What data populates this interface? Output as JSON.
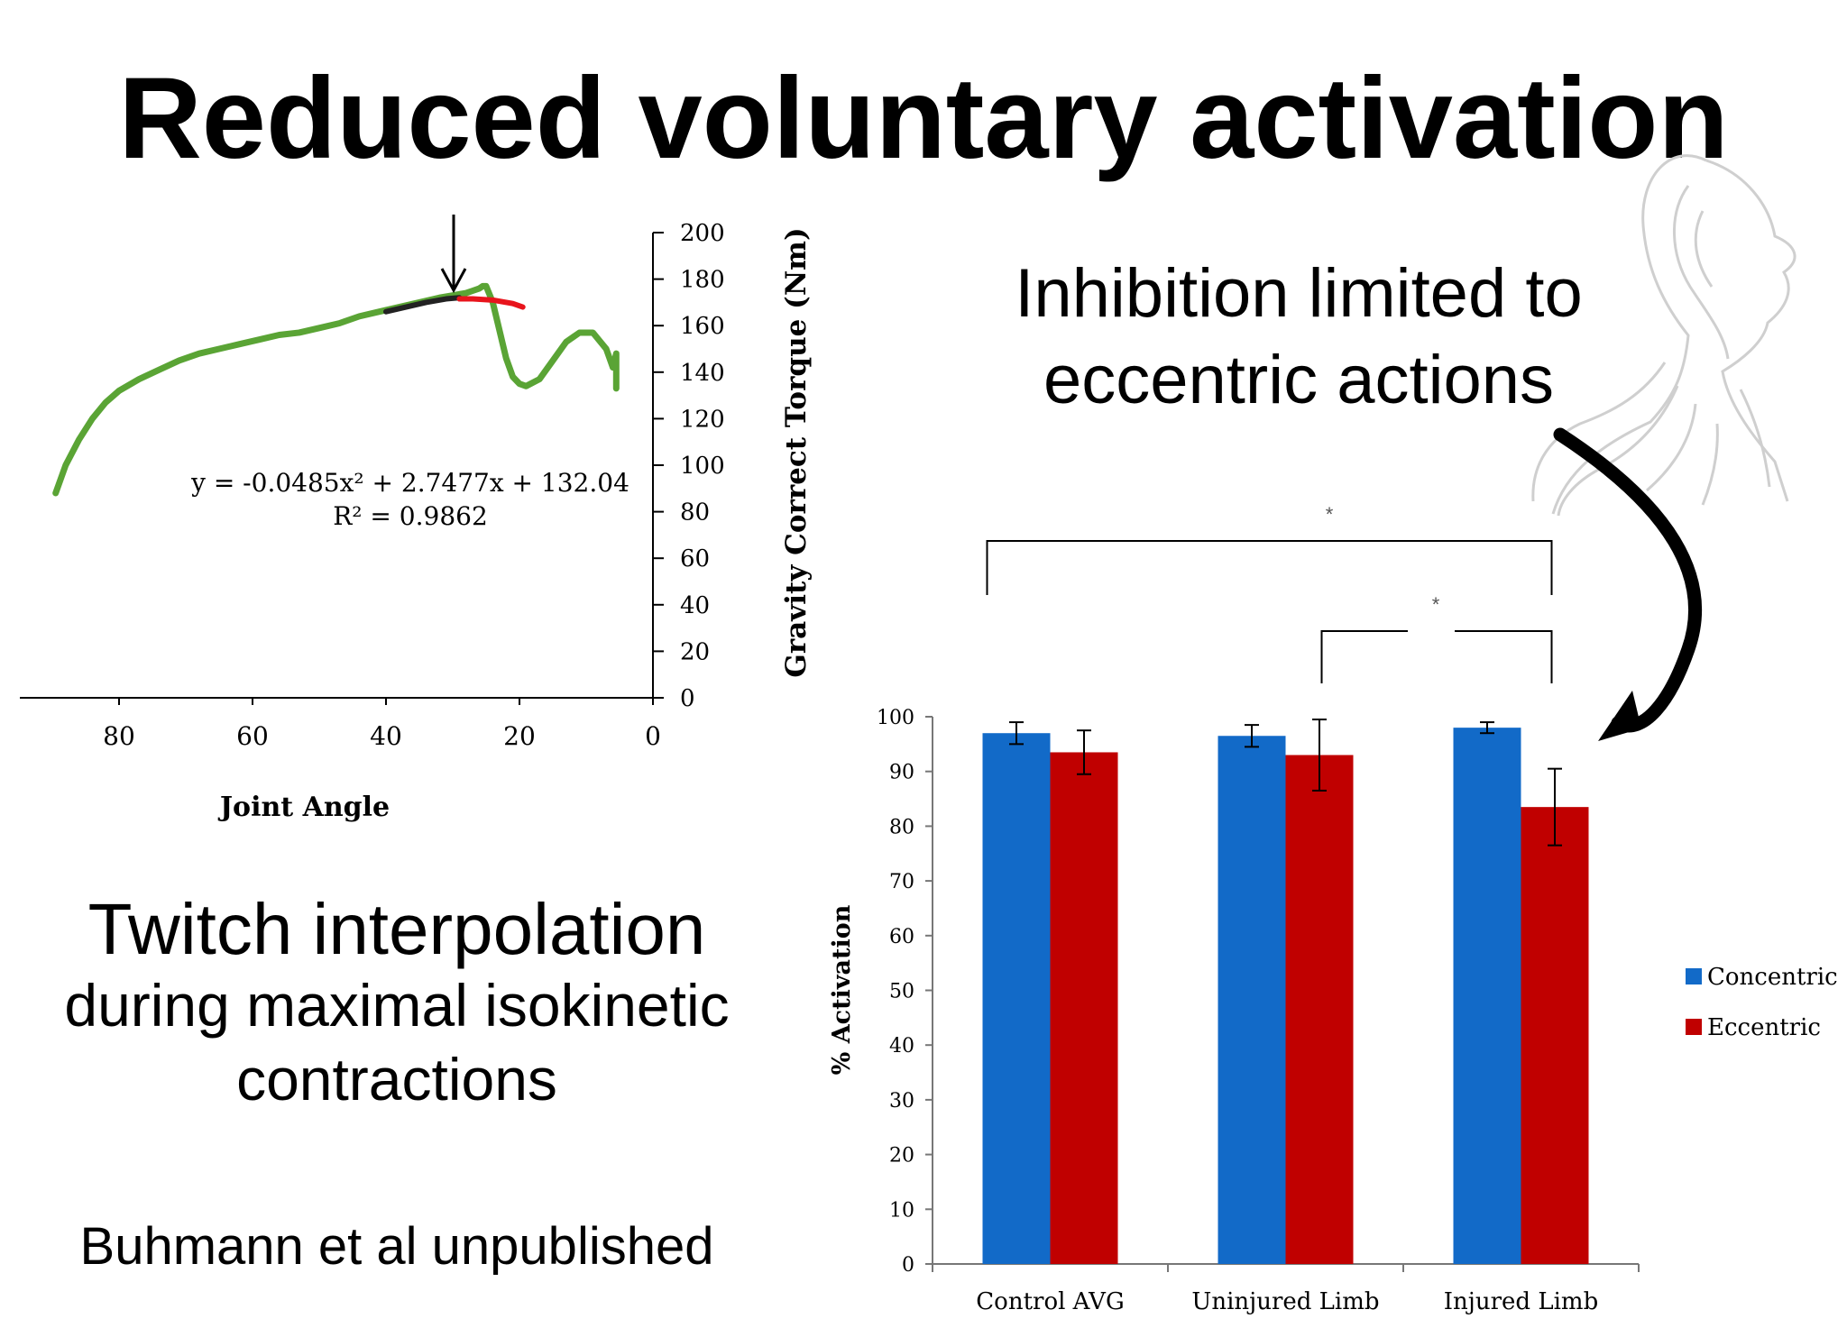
{
  "slide": {
    "title": "Reduced voluntary activation",
    "inhibition_text": [
      "Inhibition limited to",
      "eccentric actions"
    ],
    "twitch_text": [
      "Twitch interpolation",
      "during maximal isokinetic",
      "contractions"
    ],
    "credit": "Buhmann et al unpublished",
    "decorations": [
      "head-anatomy-sketch",
      "curved-arrow-icon",
      "down-arrow-icon"
    ]
  },
  "chart_data": [
    {
      "type": "line",
      "title": "",
      "xlabel": "Joint Angle",
      "ylabel": "Gravity Correct Torque (Nm)",
      "xlim": [
        95,
        0
      ],
      "ylim": [
        0,
        200
      ],
      "x_ticks": [
        "80",
        "60",
        "40",
        "20",
        "0"
      ],
      "y_ticks": [
        "200",
        "180",
        "160",
        "140",
        "120",
        "100",
        "80",
        "60",
        "40",
        "20",
        "0"
      ],
      "y_axis_side": "right",
      "annotation": [
        "y = -0.0485x² + 2.7477x + 132.04",
        "R² = 0.9862"
      ],
      "colors": {
        "torque": "#5aa435",
        "fit": "#222222",
        "extrapolation": "#e8141c"
      },
      "series": [
        {
          "color": "#5aa435",
          "x": [
            89.5,
            88,
            86,
            84,
            82,
            80,
            77,
            74,
            71,
            68,
            65,
            62,
            59,
            56,
            53,
            50,
            47,
            44,
            41,
            38,
            35,
            32,
            30,
            28,
            27,
            26,
            25.5,
            25,
            24,
            23,
            22,
            21,
            20,
            19,
            17,
            15,
            13,
            11,
            9,
            7,
            6,
            5.5,
            5.5
          ],
          "y": [
            88,
            100,
            111,
            120,
            127,
            132,
            137,
            141,
            145,
            148,
            150,
            152,
            154,
            156,
            157,
            159,
            161,
            164,
            166,
            168,
            170,
            172,
            173,
            174,
            175,
            176,
            177,
            177,
            170,
            158,
            146,
            138,
            135,
            134,
            137,
            145,
            153,
            157,
            157,
            150,
            142,
            148,
            133
          ]
        },
        {
          "color": "#222222",
          "x": [
            40,
            37,
            34,
            31,
            29
          ],
          "y": [
            166,
            168,
            170,
            171.5,
            172
          ]
        },
        {
          "color": "#e8141c",
          "x": [
            29,
            27,
            24,
            21,
            19.5
          ],
          "y": [
            171.5,
            171.5,
            171,
            169.5,
            168
          ]
        }
      ]
    },
    {
      "type": "bar",
      "title": "",
      "xlabel": "",
      "ylabel": "% Activation",
      "ylim": [
        0,
        100
      ],
      "y_ticks": [
        "100",
        "90",
        "80",
        "70",
        "60",
        "50",
        "40",
        "30",
        "20",
        "10",
        "0"
      ],
      "categories": [
        "Control AVG",
        "Uninjured Limb",
        "Injured Limb"
      ],
      "legend_position": "right",
      "series": [
        {
          "name": "Concentric",
          "color": "#126ac8",
          "values": [
            97,
            96.5,
            98
          ],
          "err": [
            2,
            2,
            1
          ]
        },
        {
          "name": "Eccentric",
          "color": "#c00000",
          "values": [
            93.5,
            93,
            83.5
          ],
          "err": [
            4,
            6.5,
            7
          ]
        }
      ],
      "significance": [
        {
          "label": "*",
          "between": [
            "Control AVG",
            "Injured Limb"
          ]
        },
        {
          "label": "*",
          "between": [
            "Uninjured Limb",
            "Injured Limb"
          ]
        }
      ]
    }
  ]
}
